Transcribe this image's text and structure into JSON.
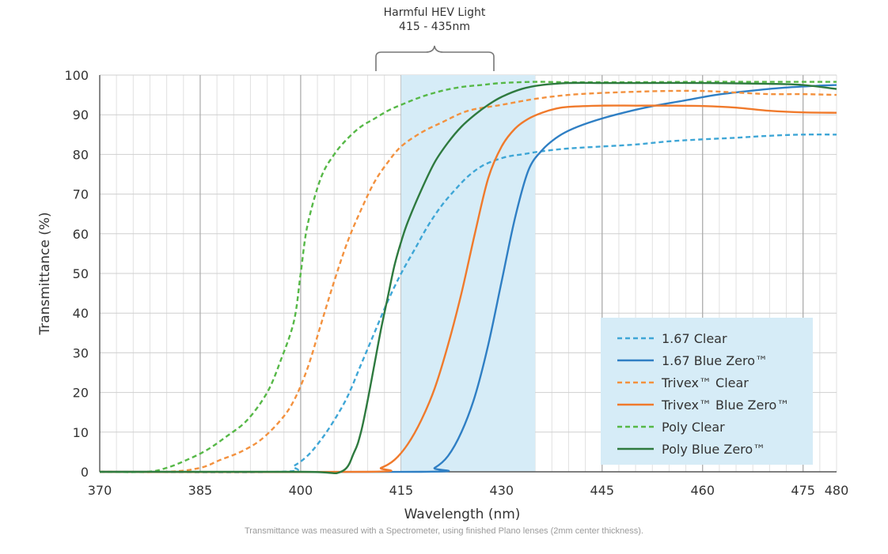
{
  "chart_data": {
    "type": "line",
    "annotation": {
      "title": "Harmful HEV Light",
      "range_label": "415 - 435nm",
      "x_range": [
        415,
        435
      ],
      "color": "#d6ecf7"
    },
    "xlabel": "Wavelength (nm)",
    "ylabel": "Transmittance (%)",
    "xlim": [
      370,
      480
    ],
    "ylim": [
      0,
      100
    ],
    "x_ticks": [
      370,
      385,
      400,
      415,
      430,
      445,
      460,
      475,
      480
    ],
    "y_ticks": [
      0,
      10,
      20,
      30,
      40,
      50,
      60,
      70,
      80,
      90,
      100
    ],
    "grid": true,
    "legend_position": "bottom-right",
    "legend_background": "#d6ecf7",
    "series": [
      {
        "name": "1.67  Clear",
        "color": "#3ea6d6",
        "dashed": true,
        "x": [
          370,
          397,
          399,
          401,
          403,
          405,
          407,
          409,
          411,
          413,
          415,
          417,
          419,
          421,
          423,
          425,
          427,
          429,
          431,
          433,
          436,
          440,
          445,
          450,
          455,
          460,
          465,
          470,
          475,
          480
        ],
        "y": [
          0,
          0,
          1.5,
          4,
          8,
          13,
          19,
          27,
          35,
          43,
          50,
          56,
          62,
          67,
          71,
          74.5,
          77,
          78.5,
          79.5,
          80,
          80.8,
          81.5,
          82,
          82.5,
          83.3,
          83.8,
          84.2,
          84.7,
          85,
          85
        ]
      },
      {
        "name": "1.67  Blue Zero™",
        "color": "#2f7fc4",
        "dashed": false,
        "x": [
          370,
          418,
          420,
          422,
          424,
          426,
          428,
          430,
          432,
          434,
          436,
          438,
          440,
          443,
          447,
          452,
          457,
          462,
          467,
          472,
          477,
          480
        ],
        "y": [
          0,
          0,
          1,
          4,
          10,
          19,
          32,
          48,
          64,
          76,
          81,
          84,
          86,
          88,
          90,
          92,
          93.5,
          95,
          96,
          96.8,
          97.3,
          97.5
        ]
      },
      {
        "name": "Trivex™ Clear",
        "color": "#f3913e",
        "dashed": true,
        "x": [
          370,
          380,
          385,
          388,
          391,
          394,
          397,
          399,
          401,
          403,
          405,
          407,
          409,
          411,
          413,
          415,
          418,
          421,
          425,
          430,
          435,
          440,
          445,
          450,
          455,
          460,
          465,
          470,
          475,
          480
        ],
        "y": [
          0,
          0,
          1,
          3,
          5,
          8,
          13,
          18,
          26,
          37,
          48,
          58,
          66,
          73,
          78,
          82,
          85.5,
          88,
          91,
          92.5,
          94,
          95,
          95.5,
          95.8,
          96,
          96,
          95.6,
          95.2,
          95.2,
          95
        ]
      },
      {
        "name": "Trivex™ Blue Zero™",
        "color": "#f07a2c",
        "dashed": false,
        "x": [
          370,
          410,
          412,
          414,
          416,
          418,
          420,
          422,
          424,
          426,
          428,
          430,
          432,
          434,
          436,
          438,
          440,
          445,
          450,
          455,
          460,
          465,
          470,
          475,
          480
        ],
        "y": [
          0,
          0,
          1,
          3,
          7,
          13,
          21,
          32,
          45,
          60,
          74,
          82,
          86.5,
          89,
          90.5,
          91.5,
          92,
          92.3,
          92.3,
          92.3,
          92.2,
          91.8,
          91,
          90.6,
          90.5
        ]
      },
      {
        "name": "Poly Clear",
        "color": "#56b847",
        "dashed": true,
        "x": [
          370,
          377,
          380,
          383,
          386,
          389,
          392,
          395,
          397,
          399,
          400,
          401,
          403,
          405,
          407,
          409,
          411,
          413,
          415,
          418,
          421,
          424,
          427,
          430,
          435,
          440,
          450,
          460,
          470,
          480
        ],
        "y": [
          0,
          0,
          1,
          3,
          5.5,
          9,
          13,
          20,
          28,
          38,
          50,
          62,
          74,
          80,
          84,
          87,
          89,
          91,
          92.5,
          94.5,
          96,
          97,
          97.5,
          98,
          98.3,
          98.2,
          98.2,
          98.3,
          98.3,
          98.3
        ]
      },
      {
        "name": "Poly  Blue Zero™",
        "color": "#2e7a3f",
        "dashed": false,
        "x": [
          370,
          400,
          406,
          408,
          409,
          410,
          411,
          412,
          413,
          414,
          415,
          416,
          418,
          420,
          422,
          424,
          426,
          428,
          430,
          433,
          436,
          440,
          445,
          450,
          460,
          470,
          475,
          480
        ],
        "y": [
          0,
          0,
          0,
          5,
          10,
          18,
          27,
          36,
          44,
          52,
          58,
          63,
          71,
          78,
          83,
          87,
          90,
          92.5,
          94.5,
          96.5,
          97.5,
          98,
          98,
          98,
          98,
          97.8,
          97.5,
          96.5
        ]
      }
    ]
  },
  "footnote": "Transmittance was measured with a Spectrometer, using finished Plano lenses (2mm center thickness)."
}
